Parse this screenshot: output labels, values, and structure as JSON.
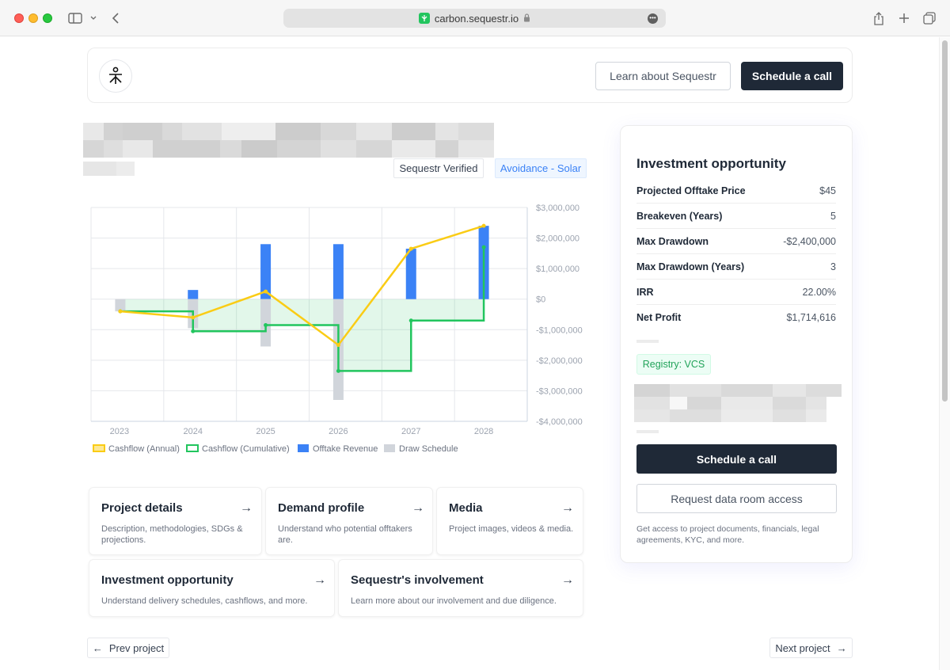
{
  "browser": {
    "url": "carbon.sequestr.io"
  },
  "header": {
    "learn_label": "Learn about Sequestr",
    "schedule_label": "Schedule a call"
  },
  "badges": {
    "verified": "Sequestr Verified",
    "type": "Avoidance - Solar"
  },
  "chart_data": {
    "type": "bar",
    "categories": [
      "2023",
      "2024",
      "2025",
      "2026",
      "2027",
      "2028"
    ],
    "y_axis_label_position": "right",
    "ylim": [
      -4000000,
      3000000
    ],
    "y_ticks": [
      3000000,
      2000000,
      1000000,
      0,
      -1000000,
      -2000000,
      -3000000,
      -4000000
    ],
    "y_tick_labels": [
      "$3,000,000",
      "$2,000,000",
      "$1,000,000",
      "$0",
      "-$1,000,000",
      "-$2,000,000",
      "-$3,000,000",
      "-$4,000,000"
    ],
    "grid": true,
    "series": [
      {
        "name": "Cashflow (Annual)",
        "kind": "line",
        "color": "#facc15",
        "values": [
          -400000,
          -600000,
          250000,
          -1500000,
          1650000,
          2400000
        ]
      },
      {
        "name": "Cashflow (Cumulative)",
        "kind": "step-area",
        "color": "#22c55e",
        "values": [
          -400000,
          -1050000,
          -850000,
          -2350000,
          -700000,
          1700000
        ]
      },
      {
        "name": "Offtake Revenue",
        "kind": "bar",
        "color": "#3b82f6",
        "values": [
          0,
          300000,
          1800000,
          1800000,
          1650000,
          2400000
        ]
      },
      {
        "name": "Draw Schedule",
        "kind": "bar",
        "color": "#d1d5db",
        "values": [
          -400000,
          -950000,
          -1550000,
          -3300000,
          0,
          0
        ]
      }
    ]
  },
  "cards": [
    {
      "title": "Project details",
      "desc": "Description, methodologies, SDGs & projections."
    },
    {
      "title": "Demand profile",
      "desc": "Understand who potential offtakers are."
    },
    {
      "title": "Media",
      "desc": "Project images, videos & media."
    },
    {
      "title": "Investment opportunity",
      "desc": "Understand delivery schedules, cashflows, and more."
    },
    {
      "title": "Sequestr's involvement",
      "desc": "Learn more about our involvement and due diligence."
    }
  ],
  "nav": {
    "prev": "Prev project",
    "next": "Next project"
  },
  "panel": {
    "title": "Investment opportunity",
    "stats": [
      {
        "label": "Projected Offtake Price",
        "value": "$45"
      },
      {
        "label": "Breakeven (Years)",
        "value": "5"
      },
      {
        "label": "Max Drawdown",
        "value": "-$2,400,000"
      },
      {
        "label": "Max Drawdown (Years)",
        "value": "3"
      },
      {
        "label": "IRR",
        "value": "22.00%"
      },
      {
        "label": "Net Profit",
        "value": "$1,714,616"
      }
    ],
    "registry": "Registry: VCS",
    "schedule_label": "Schedule a call",
    "request_label": "Request data room access",
    "note": "Get access to project documents, financials, legal agreements, KYC, and more."
  }
}
